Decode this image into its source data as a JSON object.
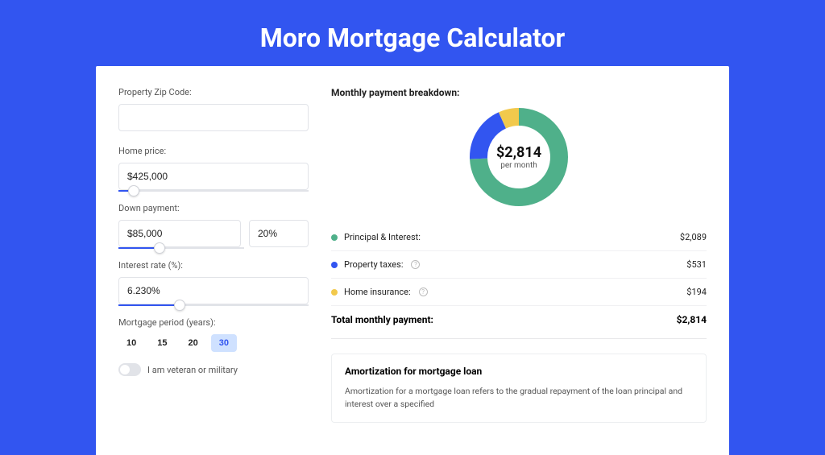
{
  "title": "Moro Mortgage Calculator",
  "colors": {
    "page_bg": "#3255f0",
    "card_bg": "#ffffff",
    "accent": "#3255f0"
  },
  "form": {
    "zip": {
      "label": "Property Zip Code:",
      "value": ""
    },
    "price": {
      "label": "Home price:",
      "value": "$425,000",
      "slider_pct": 8
    },
    "down": {
      "label": "Down payment:",
      "value": "$85,000",
      "pct_value": "20%",
      "slider_pct": 22
    },
    "rate": {
      "label": "Interest rate (%):",
      "value": "6.230%",
      "slider_pct": 32
    },
    "period": {
      "label": "Mortgage period (years):",
      "options": [
        "10",
        "15",
        "20",
        "30"
      ],
      "selected": "30"
    },
    "veteran": {
      "label": "I am veteran or military",
      "on": false
    }
  },
  "breakdown": {
    "title": "Monthly payment breakdown:",
    "center_value": "$2,814",
    "center_sub": "per month",
    "donut": {
      "type": "donut",
      "radius": 50,
      "stroke_width": 22,
      "circumference": 314.16,
      "background_color": "#ffffff",
      "slices": [
        {
          "label": "Principal & Interest:",
          "value": "$2,089",
          "color": "#4fb08a",
          "fraction": 0.742
        },
        {
          "label": "Property taxes:",
          "value": "$531",
          "color": "#3255f0",
          "fraction": 0.189,
          "info": true
        },
        {
          "label": "Home insurance:",
          "value": "$194",
          "color": "#f2c94c",
          "fraction": 0.069,
          "info": true
        }
      ]
    },
    "total_label": "Total monthly payment:",
    "total_value": "$2,814"
  },
  "amortization": {
    "title": "Amortization for mortgage loan",
    "text": "Amortization for a mortgage loan refers to the gradual repayment of the loan principal and interest over a specified"
  }
}
